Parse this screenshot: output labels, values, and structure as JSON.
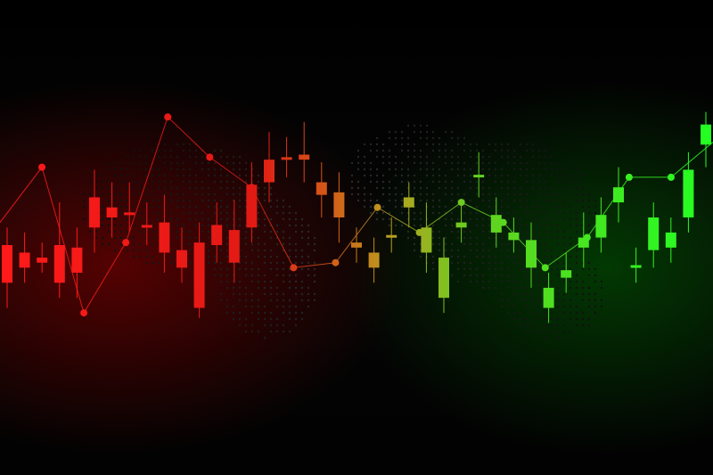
{
  "chart_data": {
    "type": "candlestick",
    "title": "",
    "xlabel": "",
    "ylabel": "",
    "grid": false,
    "legend": "none",
    "colors": {
      "background": "#000000",
      "bearish": "#ff1a1a",
      "bullish": "#22ff22",
      "transition_mid": "#c06010",
      "map_dots": "#2a2a2a"
    },
    "ylim": [
      0,
      100
    ],
    "candles": [
      {
        "i": 0,
        "open": 40,
        "close": 55,
        "high": 62,
        "low": 30
      },
      {
        "i": 1,
        "open": 46,
        "close": 52,
        "high": 60,
        "low": 40
      },
      {
        "i": 2,
        "open": 48,
        "close": 50,
        "high": 56,
        "low": 44
      },
      {
        "i": 3,
        "open": 55,
        "close": 40,
        "high": 72,
        "low": 34
      },
      {
        "i": 4,
        "open": 54,
        "close": 44,
        "high": 62,
        "low": 34
      },
      {
        "i": 5,
        "open": 74,
        "close": 62,
        "high": 85,
        "low": 52
      },
      {
        "i": 6,
        "open": 70,
        "close": 66,
        "high": 80,
        "low": 58
      },
      {
        "i": 7,
        "open": 68,
        "close": 68,
        "high": 80,
        "low": 60
      },
      {
        "i": 8,
        "open": 63,
        "close": 63,
        "high": 72,
        "low": 55
      },
      {
        "i": 9,
        "open": 64,
        "close": 52,
        "high": 75,
        "low": 44
      },
      {
        "i": 10,
        "open": 53,
        "close": 46,
        "high": 62,
        "low": 40
      },
      {
        "i": 11,
        "open": 56,
        "close": 30,
        "high": 64,
        "low": 26
      },
      {
        "i": 12,
        "open": 63,
        "close": 55,
        "high": 72,
        "low": 48
      },
      {
        "i": 13,
        "open": 61,
        "close": 48,
        "high": 73,
        "low": 40
      },
      {
        "i": 14,
        "open": 79,
        "close": 62,
        "high": 88,
        "low": 56
      },
      {
        "i": 15,
        "open": 89,
        "close": 80,
        "high": 100,
        "low": 72
      },
      {
        "i": 16,
        "open": 90,
        "close": 90,
        "high": 98,
        "low": 82
      },
      {
        "i": 17,
        "open": 91,
        "close": 89,
        "high": 104,
        "low": 80
      },
      {
        "i": 18,
        "open": 80,
        "close": 75,
        "high": 88,
        "low": 66
      },
      {
        "i": 19,
        "open": 76,
        "close": 66,
        "high": 84,
        "low": 56
      },
      {
        "i": 20,
        "open": 56,
        "close": 54,
        "high": 62,
        "low": 48
      },
      {
        "i": 21,
        "open": 52,
        "close": 46,
        "high": 58,
        "low": 40
      },
      {
        "i": 22,
        "open": 59,
        "close": 59,
        "high": 66,
        "low": 52
      },
      {
        "i": 23,
        "open": 70,
        "close": 74,
        "high": 80,
        "low": 62
      },
      {
        "i": 24,
        "open": 52,
        "close": 62,
        "high": 72,
        "low": 44
      },
      {
        "i": 25,
        "open": 34,
        "close": 50,
        "high": 58,
        "low": 28
      },
      {
        "i": 26,
        "open": 62,
        "close": 64,
        "high": 72,
        "low": 56
      },
      {
        "i": 27,
        "open": 83,
        "close": 83,
        "high": 92,
        "low": 74
      },
      {
        "i": 28,
        "open": 60,
        "close": 67,
        "high": 74,
        "low": 54
      },
      {
        "i": 29,
        "open": 57,
        "close": 60,
        "high": 66,
        "low": 52
      },
      {
        "i": 30,
        "open": 46,
        "close": 57,
        "high": 64,
        "low": 38
      },
      {
        "i": 31,
        "open": 30,
        "close": 38,
        "high": 44,
        "low": 24
      },
      {
        "i": 32,
        "open": 42,
        "close": 45,
        "high": 52,
        "low": 36
      },
      {
        "i": 33,
        "open": 54,
        "close": 58,
        "high": 68,
        "low": 46
      },
      {
        "i": 34,
        "open": 58,
        "close": 67,
        "high": 74,
        "low": 52
      },
      {
        "i": 35,
        "open": 72,
        "close": 78,
        "high": 86,
        "low": 64
      },
      {
        "i": 36,
        "open": 47,
        "close": 47,
        "high": 54,
        "low": 40
      },
      {
        "i": 37,
        "open": 53,
        "close": 66,
        "high": 72,
        "low": 46
      },
      {
        "i": 38,
        "open": 54,
        "close": 60,
        "high": 66,
        "low": 48
      },
      {
        "i": 39,
        "open": 66,
        "close": 85,
        "high": 92,
        "low": 60
      },
      {
        "i": 40,
        "open": 95,
        "close": 103,
        "high": 108,
        "low": 86
      }
    ],
    "line_points": [
      64,
      86,
      28,
      56,
      106,
      90,
      78,
      46,
      48,
      70,
      60,
      72,
      64,
      46,
      58,
      82,
      82,
      96
    ]
  }
}
